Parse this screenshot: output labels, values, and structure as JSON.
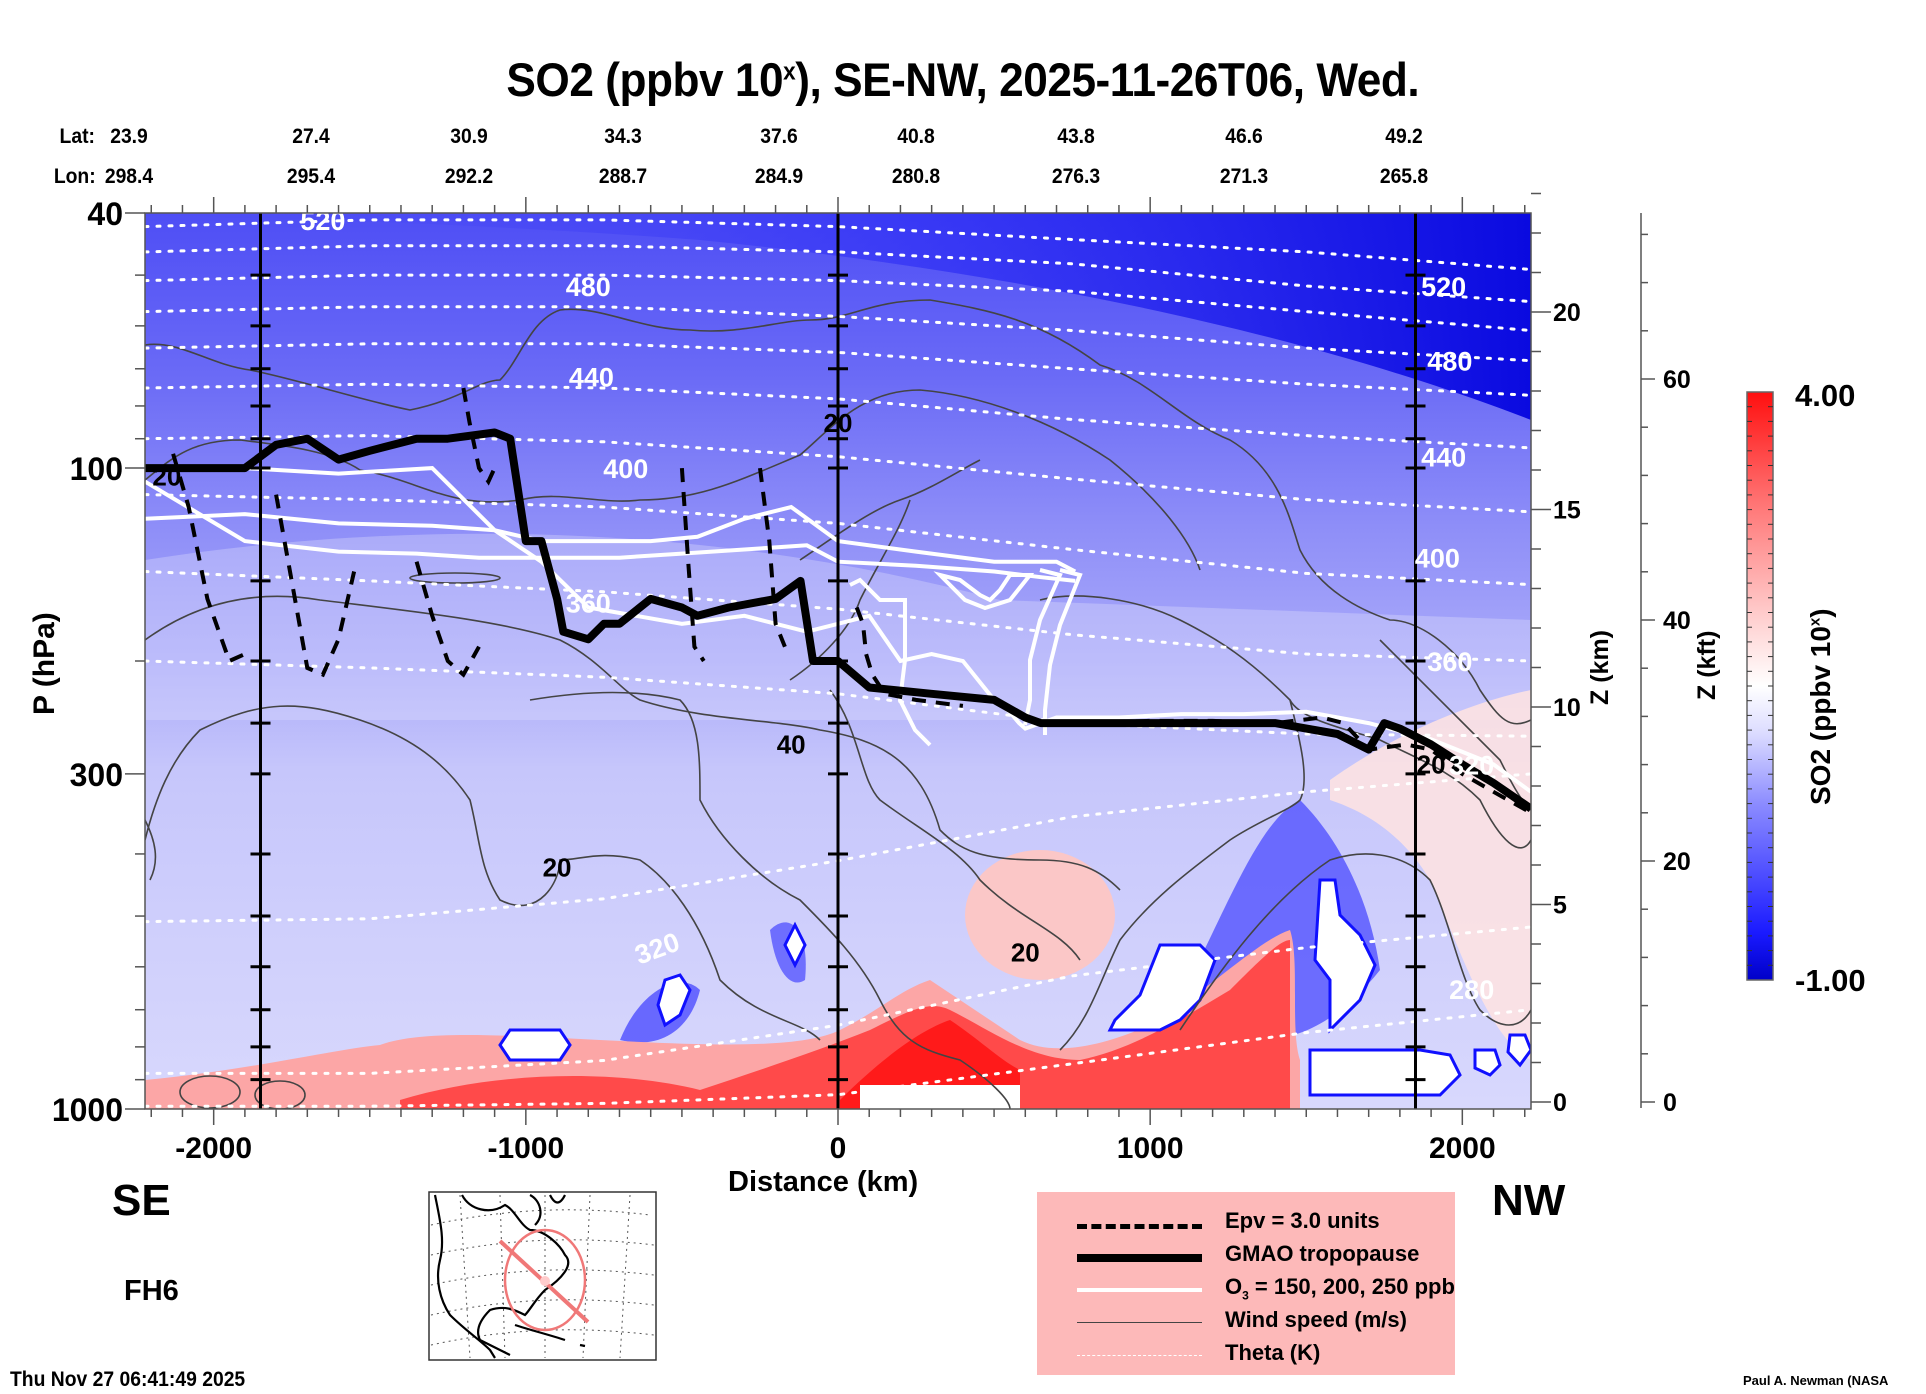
{
  "title": {
    "prefix": "SO2 (ppbv 10",
    "sup": "x",
    "suffix": "), SE-NW, 2025-11-26T06, Wed."
  },
  "latlon": {
    "lat_label": "Lat:",
    "lon_label": "Lon:",
    "lat": [
      "23.9",
      "27.4",
      "30.9",
      "34.3",
      "37.6",
      "40.8",
      "43.8",
      "46.6",
      "49.2"
    ],
    "lon": [
      "298.4",
      "295.4",
      "292.2",
      "288.7",
      "284.9",
      "280.8",
      "276.3",
      "271.3",
      "265.8"
    ]
  },
  "direction": {
    "left": "SE",
    "right": "NW"
  },
  "forecast_hour": "FH6",
  "footer": {
    "timestamp": "Thu Nov 27 06:41:49 2025",
    "credit": "Paul A. Newman (NASA"
  },
  "legend": [
    {
      "style": "dashed",
      "label": "Epv = 3.0 units"
    },
    {
      "style": "thick",
      "label": "GMAO tropopause"
    },
    {
      "style": "white",
      "label": "O3 = 150, 200, 250 ppb",
      "label_main": "O",
      "label_sub": "3",
      "label_rest": " = 150, 200, 250 ppb"
    },
    {
      "style": "thin",
      "label": "Wind speed (m/s)"
    },
    {
      "style": "dotted",
      "label": "Theta (K)"
    }
  ],
  "colors": {
    "field_low": "#0000d0",
    "field_mid": "#ffffff",
    "field_high": "#ff1010",
    "legend_bg": "#fdb9b9",
    "map_track": "#f07878"
  },
  "chart_data": {
    "type": "heatmap",
    "title": "SO2 (ppbv 10^x), SE-NW, 2025-11-26T06, Wed.",
    "xlabel": "Distance (km)",
    "ylabel": "P (hPa)",
    "y2label": "Z (km)",
    "y3label": "Z (kft)",
    "colorbar_label": "SO2 (ppbv 10^x)",
    "xlim": [
      -2220,
      2220
    ],
    "ylim_hpa": [
      1000,
      40
    ],
    "y_scale": "log",
    "x_ticks": [
      -2000,
      -1000,
      0,
      1000,
      2000
    ],
    "x_tick_labels": [
      "-2000",
      "-1000",
      "0",
      "1000",
      "2000"
    ],
    "y_ticks": [
      40,
      100,
      300,
      1000
    ],
    "y_tick_labels": [
      "40",
      "100",
      "300",
      "1000"
    ],
    "z_km_ticks": [
      0,
      5,
      10,
      15,
      20
    ],
    "z_km_tick_labels": [
      "0",
      "5",
      "10",
      "15",
      "20"
    ],
    "z_kft_ticks": [
      0,
      20,
      40,
      60
    ],
    "z_kft_tick_labels": [
      "0",
      "20",
      "40",
      "60"
    ],
    "colorbar": {
      "min": -1.0,
      "max": 4.0,
      "min_label": "-1.00",
      "max_label": "4.00",
      "levels": 40
    },
    "vertical_markers_km": [
      -1850,
      0,
      1850
    ],
    "theta_contours_K": [
      280,
      320,
      360,
      400,
      440,
      480,
      520
    ],
    "theta_labels": [
      {
        "value": "520",
        "x": -1650,
        "p": 41
      },
      {
        "value": "480",
        "x": -800,
        "p": 52
      },
      {
        "value": "440",
        "x": -790,
        "p": 72
      },
      {
        "value": "400",
        "x": -680,
        "p": 100
      },
      {
        "value": "360",
        "x": -800,
        "p": 162
      },
      {
        "value": "320",
        "x": -580,
        "p": 560
      },
      {
        "value": "520",
        "x": 1940,
        "p": 52
      },
      {
        "value": "480",
        "x": 1960,
        "p": 68
      },
      {
        "value": "440",
        "x": 1940,
        "p": 96
      },
      {
        "value": "400",
        "x": 1920,
        "p": 138
      },
      {
        "value": "360",
        "x": 1960,
        "p": 200
      },
      {
        "value": "320",
        "x": 2030,
        "p": 290
      },
      {
        "value": "280",
        "x": 2030,
        "p": 650
      }
    ],
    "theta_levels_p": [
      {
        "theta": 520,
        "p": [
          42,
          41,
          41,
          42,
          44,
          46,
          49
        ]
      },
      {
        "theta": 500,
        "p": [
          46,
          45,
          45,
          46,
          48,
          52,
          55
        ]
      },
      {
        "theta": 480,
        "p": [
          51,
          50,
          50,
          51,
          53,
          57,
          61
        ]
      },
      {
        "theta": 460,
        "p": [
          57,
          56,
          56,
          58,
          61,
          65,
          68
        ]
      },
      {
        "theta": 440,
        "p": [
          65,
          64,
          64,
          66,
          70,
          74,
          77
        ]
      },
      {
        "theta": 420,
        "p": [
          75,
          74,
          75,
          78,
          84,
          89,
          93
        ]
      },
      {
        "theta": 400,
        "p": [
          90,
          89,
          91,
          96,
          104,
          112,
          117
        ]
      },
      {
        "theta": 380,
        "p": [
          110,
          112,
          115,
          122,
          134,
          146,
          152
        ]
      },
      {
        "theta": 360,
        "p": [
          145,
          150,
          156,
          166,
          182,
          195,
          200
        ]
      },
      {
        "theta": 340,
        "p": [
          200,
          205,
          212,
          225,
          250,
          260,
          262
        ]
      },
      {
        "theta": 320,
        "p": [
          510,
          505,
          470,
          410,
          350,
          320,
          300
        ]
      },
      {
        "theta": 300,
        "p": [
          880,
          880,
          840,
          740,
          620,
          560,
          520
        ]
      },
      {
        "theta": 280,
        "p": [
          990,
          990,
          980,
          950,
          850,
          760,
          700
        ]
      }
    ],
    "theta_x": [
      -2220,
      -1500,
      -750,
      0,
      750,
      1500,
      2220
    ],
    "tropopause": {
      "x": [
        -2220,
        -1900,
        -1800,
        -1700,
        -1600,
        -1500,
        -1350,
        -1250,
        -1100,
        -1050,
        -1000,
        -950,
        -900,
        -880,
        -800,
        -750,
        -700,
        -600,
        -500,
        -450,
        -350,
        -200,
        -120,
        -80,
        0,
        100,
        300,
        500,
        600,
        650,
        700,
        1000,
        1300,
        1400,
        1600,
        1700,
        1750,
        1800,
        1900,
        2000,
        2100,
        2220
      ],
      "p": [
        100,
        100,
        92,
        90,
        97,
        94,
        90,
        90,
        88,
        90,
        130,
        130,
        160,
        180,
        185,
        175,
        175,
        160,
        165,
        170,
        165,
        160,
        150,
        200,
        200,
        220,
        225,
        230,
        245,
        250,
        250,
        250,
        250,
        250,
        260,
        275,
        250,
        255,
        270,
        290,
        310,
        340
      ]
    },
    "epv_dashed_segments": [
      {
        "x": [
          -2130,
          -2080,
          -2020,
          -1950,
          -1900
        ],
        "p": [
          95,
          115,
          160,
          200,
          195
        ]
      },
      {
        "x": [
          -1800,
          -1750,
          -1700,
          -1650,
          -1600,
          -1550
        ],
        "p": [
          110,
          150,
          205,
          210,
          185,
          145
        ]
      },
      {
        "x": [
          -1200,
          -1180,
          -1150,
          -1120,
          -1100
        ],
        "p": [
          75,
          85,
          100,
          105,
          100
        ]
      },
      {
        "x": [
          -1350,
          -1300,
          -1250,
          -1200,
          -1150
        ],
        "p": [
          140,
          170,
          200,
          210,
          190
        ]
      },
      {
        "x": [
          -500,
          -480,
          -460,
          -430
        ],
        "p": [
          100,
          140,
          190,
          200
        ]
      },
      {
        "x": [
          -250,
          -220,
          -200,
          -170
        ],
        "p": [
          100,
          130,
          175,
          190
        ]
      },
      {
        "x": [
          60,
          80,
          90,
          110,
          150,
          250,
          400
        ],
        "p": [
          165,
          175,
          195,
          210,
          225,
          230,
          235
        ]
      },
      {
        "x": [
          800,
          1000,
          1200,
          1400,
          1550,
          1620,
          1700,
          1820,
          1900,
          2000,
          2100,
          2220
        ],
        "p": [
          250,
          248,
          248,
          250,
          245,
          250,
          275,
          270,
          275,
          300,
          320,
          345
        ]
      }
    ],
    "ozone_white": [
      {
        "x": [
          -2220,
          -1900,
          -1600,
          -1300,
          -1100,
          -950,
          -600,
          -450,
          -300,
          -150,
          0,
          250,
          500,
          700,
          760
        ],
        "p": [
          120,
          118,
          122,
          123,
          125,
          130,
          130,
          128,
          120,
          115,
          130,
          135,
          140,
          140,
          145
        ]
      },
      {
        "x": [
          -2220,
          -1900,
          -1600,
          -1350,
          -1150,
          -950,
          -700,
          -500,
          -300,
          -100,
          0,
          250,
          500,
          650,
          760
        ],
        "p": [
          105,
          130,
          135,
          136,
          138,
          138,
          138,
          136,
          134,
          132,
          140,
          142,
          145,
          148,
          150
        ]
      },
      {
        "x": [
          -1900,
          -1600,
          -1300,
          -1100,
          -950,
          -800,
          -500,
          -300,
          -100,
          0,
          100,
          200,
          300,
          400,
          500,
          550,
          580,
          600,
          700,
          900,
          1100,
          1300,
          1500,
          1700,
          1900,
          2100,
          2220
        ],
        "p": [
          100,
          102,
          100,
          125,
          140,
          165,
          175,
          170,
          180,
          175,
          170,
          200,
          195,
          200,
          230,
          240,
          250,
          255,
          245,
          245,
          242,
          242,
          240,
          250,
          265,
          290,
          320
        ]
      }
    ],
    "wind_labels": [
      {
        "value": "20",
        "x": -2150,
        "p": 103
      },
      {
        "value": "20",
        "x": 0,
        "p": 85
      },
      {
        "value": "40",
        "x": -150,
        "p": 270
      },
      {
        "value": "20",
        "x": -900,
        "p": 420
      },
      {
        "value": "20",
        "x": 600,
        "p": 570
      },
      {
        "value": "20",
        "x": 1900,
        "p": 290
      }
    ],
    "field_regions": [
      {
        "desc": "strat blue top",
        "value": -0.8
      },
      {
        "desc": "surface red layer",
        "value": 3.0
      }
    ]
  }
}
